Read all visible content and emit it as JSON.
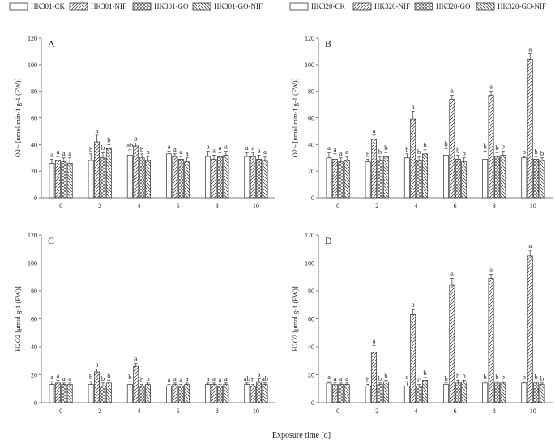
{
  "chart_data": [
    {
      "type": "bar",
      "panel": "A",
      "ylabel": "O2·- [nmol min-1 g-1 (FW)]",
      "ylim": [
        0,
        120
      ],
      "yticks": [
        0,
        20,
        40,
        60,
        80,
        100,
        120
      ],
      "categories": [
        "0",
        "2",
        "4",
        "6",
        "8",
        "10"
      ],
      "series": [
        {
          "name": "HK301-CK",
          "values": [
            26,
            28,
            32,
            33,
            31,
            31
          ],
          "errors": [
            3,
            5,
            4,
            2,
            4,
            3
          ],
          "labels": [
            "a",
            "b",
            "ab",
            "a",
            "a",
            "a"
          ]
        },
        {
          "name": "HK301-NIF",
          "values": [
            28,
            42,
            39,
            31,
            29,
            31
          ],
          "errors": [
            3,
            5,
            2,
            2,
            3,
            3
          ],
          "labels": [
            "a",
            "a",
            "a",
            "a",
            "a",
            "a"
          ]
        },
        {
          "name": "HK301-GO",
          "values": [
            27,
            30,
            30,
            29,
            31,
            29
          ],
          "errors": [
            3,
            4,
            3,
            2,
            3,
            3
          ],
          "labels": [
            "a",
            "b",
            "b",
            "a",
            "a",
            "a"
          ]
        },
        {
          "name": "HK301-GO-NIF",
          "values": [
            26,
            37,
            28,
            27,
            32,
            28
          ],
          "errors": [
            4,
            3,
            3,
            3,
            3,
            3
          ],
          "labels": [
            "a",
            "b",
            "b",
            "a",
            "a",
            "a"
          ]
        }
      ],
      "legend": [
        "HK301-CK",
        "HK301-NIF",
        "HK301-GO",
        "HK301-GO-NIF"
      ]
    },
    {
      "type": "bar",
      "panel": "B",
      "ylabel": "O2·- [nmol min-1 g-1 (FW)]",
      "ylim": [
        0,
        120
      ],
      "yticks": [
        0,
        20,
        40,
        60,
        80,
        100,
        120
      ],
      "categories": [
        "0",
        "2",
        "4",
        "6",
        "8",
        "10"
      ],
      "series": [
        {
          "name": "HK320-CK",
          "values": [
            30,
            27,
            30,
            32,
            29,
            30
          ],
          "errors": [
            4,
            2,
            3,
            5,
            6,
            1
          ],
          "labels": [
            "a",
            "b",
            "b",
            "b",
            "b",
            "b"
          ]
        },
        {
          "name": "HK320-NIF",
          "values": [
            29,
            44,
            59,
            74,
            77,
            104
          ],
          "errors": [
            4,
            3,
            6,
            3,
            3,
            4
          ],
          "labels": [
            "a",
            "a",
            "a",
            "a",
            "a",
            "a"
          ]
        },
        {
          "name": "HK320-GO",
          "values": [
            27,
            28,
            28,
            29,
            31,
            29
          ],
          "errors": [
            3,
            3,
            3,
            3,
            3,
            2
          ],
          "labels": [
            "a",
            "b",
            "b",
            "b",
            "b",
            "b"
          ]
        },
        {
          "name": "HK320-GO-NIF",
          "values": [
            28,
            31,
            33,
            27,
            32,
            28
          ],
          "errors": [
            3,
            3,
            3,
            3,
            3,
            2
          ],
          "labels": [
            "a",
            "b",
            "b",
            "b",
            "b",
            "b"
          ]
        }
      ],
      "legend": [
        "HK320-CK",
        "HK320-NIF",
        "HK320-GO",
        "HK320-GO-NIF"
      ]
    },
    {
      "type": "bar",
      "panel": "C",
      "ylabel": "H2O2 [μmol g-1 (FW)]",
      "ylim": [
        0,
        120
      ],
      "yticks": [
        0,
        20,
        40,
        60,
        80,
        100,
        120
      ],
      "categories": [
        "0",
        "2",
        "4",
        "6",
        "8",
        "10"
      ],
      "series": [
        {
          "name": "HK301-CK",
          "values": [
            13,
            13,
            13,
            12,
            13,
            13
          ],
          "errors": [
            2,
            2,
            2,
            1,
            1,
            1
          ],
          "labels": [
            "a",
            "b",
            "b",
            "a",
            "a",
            "ab"
          ]
        },
        {
          "name": "HK301-NIF",
          "values": [
            14,
            22,
            26,
            13,
            13,
            12
          ],
          "errors": [
            2,
            2,
            2,
            1,
            1,
            1
          ],
          "labels": [
            "a",
            "a",
            "a",
            "a",
            "a",
            "b"
          ]
        },
        {
          "name": "HK301-GO",
          "values": [
            13,
            12,
            12,
            12,
            12,
            15
          ],
          "errors": [
            1,
            2,
            1,
            1,
            1,
            2
          ],
          "labels": [
            "a",
            "b",
            "b",
            "a",
            "a",
            "a"
          ]
        },
        {
          "name": "HK301-GO-NIF",
          "values": [
            13,
            14,
            13,
            13,
            13,
            13
          ],
          "errors": [
            1,
            2,
            1,
            1,
            1,
            1
          ],
          "labels": [
            "a",
            "b",
            "b",
            "a",
            "a",
            "ab"
          ]
        }
      ],
      "legend": [
        "HK301-CK",
        "HK301-NIF",
        "HK301-GO",
        "HK301-GO-NIF"
      ]
    },
    {
      "type": "bar",
      "panel": "D",
      "ylabel": "H2O2 [μmol g-1 (FW)]",
      "ylim": [
        0,
        120
      ],
      "yticks": [
        0,
        20,
        40,
        60,
        80,
        100,
        120
      ],
      "categories": [
        "0",
        "2",
        "4",
        "6",
        "8",
        "10"
      ],
      "series": [
        {
          "name": "HK320-CK",
          "values": [
            14,
            12,
            12,
            13,
            14,
            14
          ],
          "errors": [
            1,
            1,
            3,
            1,
            1,
            1
          ],
          "labels": [
            "a",
            "b",
            "c",
            "b",
            "b",
            "b"
          ]
        },
        {
          "name": "HK320-NIF",
          "values": [
            13,
            36,
            63,
            84,
            89,
            105
          ],
          "errors": [
            1,
            5,
            4,
            5,
            3,
            4
          ],
          "labels": [
            "a",
            "a",
            "a",
            "a",
            "a",
            "a"
          ]
        },
        {
          "name": "HK320-GO",
          "values": [
            13,
            13,
            12,
            14,
            14,
            14
          ],
          "errors": [
            1,
            1,
            1,
            2,
            1,
            1
          ],
          "labels": [
            "a",
            "b",
            "c",
            "b",
            "b",
            "b"
          ]
        },
        {
          "name": "HK320-GO-NIF",
          "values": [
            13,
            15,
            16,
            15,
            14,
            13
          ],
          "errors": [
            1,
            1,
            2,
            1,
            1,
            1
          ],
          "labels": [
            "a",
            "b",
            "b",
            "b",
            "b",
            "b"
          ]
        }
      ],
      "legend": [
        "HK320-CK",
        "HK320-NIF",
        "HK320-GO",
        "HK320-GO-NIF"
      ]
    }
  ],
  "xlabel": "Exposure time [d]",
  "legend_left": [
    "HK301-CK",
    "HK301-NIF",
    "HK301-GO",
    "HK301-GO-NIF"
  ],
  "legend_right": [
    "HK320-CK",
    "HK320-NIF",
    "HK320-GO",
    "HK320-GO-NIF"
  ],
  "colors": {
    "axis": "#555555",
    "bar_stroke": "#333333",
    "text": "#222222"
  }
}
